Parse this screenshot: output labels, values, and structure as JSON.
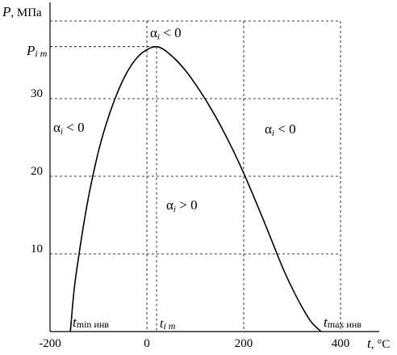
{
  "chart_data": {
    "type": "line",
    "ylabel_italic": "P",
    "ylabel_unit": ", МПа",
    "xlabel_italic": "t",
    "xlabel_unit": ", °C",
    "xlim": [
      -200,
      400
    ],
    "ylim": [
      0,
      40
    ],
    "x_ticks": [
      "-200",
      "0",
      "200",
      "400"
    ],
    "x_tick_values": [
      -200,
      0,
      200,
      400
    ],
    "y_ticks": [
      "10",
      "20",
      "30"
    ],
    "y_tick_values": [
      10,
      20,
      30
    ],
    "grid": true,
    "series": [
      {
        "x": [
          -158,
          -150,
          -140,
          -130,
          -120,
          -110,
          -100,
          -90,
          -80,
          -70,
          -60,
          -50,
          -40,
          -30,
          -20,
          -10,
          0,
          10,
          20,
          30,
          40,
          60,
          80,
          100,
          120,
          140,
          160,
          180,
          200,
          220,
          240,
          260,
          280,
          300,
          320,
          340,
          360
        ],
        "y": [
          0,
          5.5,
          10,
          14,
          17.5,
          20.5,
          23.2,
          25.5,
          27.5,
          29.3,
          30.9,
          32.3,
          33.5,
          34.5,
          35.3,
          35.9,
          36.3,
          36.6,
          36.7,
          36.5,
          36.1,
          35.0,
          33.6,
          31.9,
          30.0,
          27.9,
          25.6,
          23.1,
          20.4,
          17.5,
          14.5,
          11.4,
          8.3,
          5.6,
          3.2,
          1.2,
          0
        ]
      }
    ],
    "peak": {
      "t": 20,
      "P": 36.7
    },
    "annotations": {
      "pim_main": "P",
      "pim_sub": "i m",
      "tim_main": "t",
      "tim_sub": "i m",
      "tmin_main": "t",
      "tmin_sub": "min инв",
      "tmax_main": "t",
      "tmax_sub": "max инв",
      "alpha_top": "α",
      "alpha_top_sub": "i",
      "alpha_top_rel": " < 0",
      "alpha_left": "α",
      "alpha_left_sub": "i",
      "alpha_left_rel": " < 0",
      "alpha_right": "α",
      "alpha_right_sub": "i",
      "alpha_right_rel": " < 0",
      "alpha_mid": "α",
      "alpha_mid_sub": "i",
      "alpha_mid_rel": " > 0"
    }
  }
}
